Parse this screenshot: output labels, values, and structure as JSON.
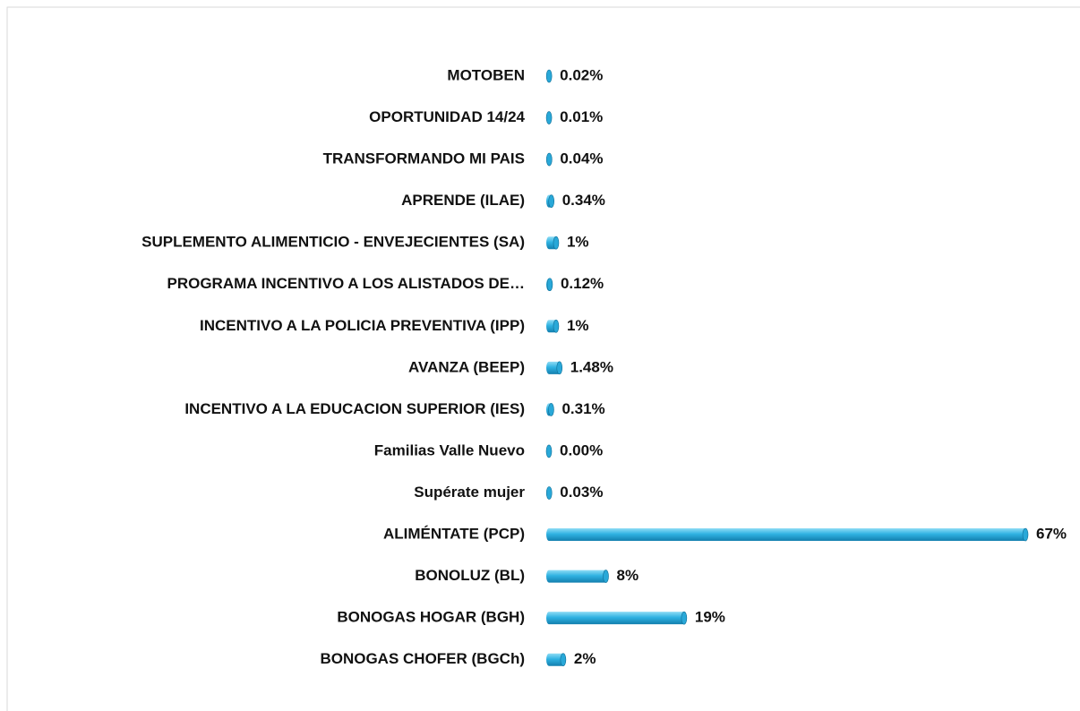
{
  "chart_data": {
    "type": "bar",
    "orientation": "horizontal",
    "color": "#29a8d8",
    "categories": [
      "MOTOBEN",
      "OPORTUNIDAD 14/24",
      "TRANSFORMANDO  MI PAIS",
      "APRENDE (ILAE)",
      "SUPLEMENTO ALIMENTICIO - ENVEJECIENTES (SA)",
      "PROGRAMA INCENTIVO A LOS ALISTADOS DE…",
      "INCENTIVO A LA POLICIA PREVENTIVA (IPP)",
      "AVANZA (BEEP)",
      "INCENTIVO A LA EDUCACION SUPERIOR (IES)",
      "Familias Valle Nuevo",
      "Supérate mujer",
      "ALIMÉNTATE (PCP)",
      "BONOLUZ (BL)",
      "BONOGAS HOGAR (BGH)",
      "BONOGAS CHOFER (BGCh)"
    ],
    "values": [
      0.02,
      0.01,
      0.04,
      0.34,
      1,
      0.12,
      1,
      1.48,
      0.31,
      0,
      0.03,
      67,
      8,
      19,
      2
    ],
    "value_labels": [
      "0.02%",
      "0.01%",
      "0.04%",
      "0.34%",
      "1%",
      "0.12%",
      "1%",
      "1.48%",
      "0.31%",
      "0.00%",
      "0.03%",
      "67%",
      "8%",
      "19%",
      "2%"
    ]
  }
}
